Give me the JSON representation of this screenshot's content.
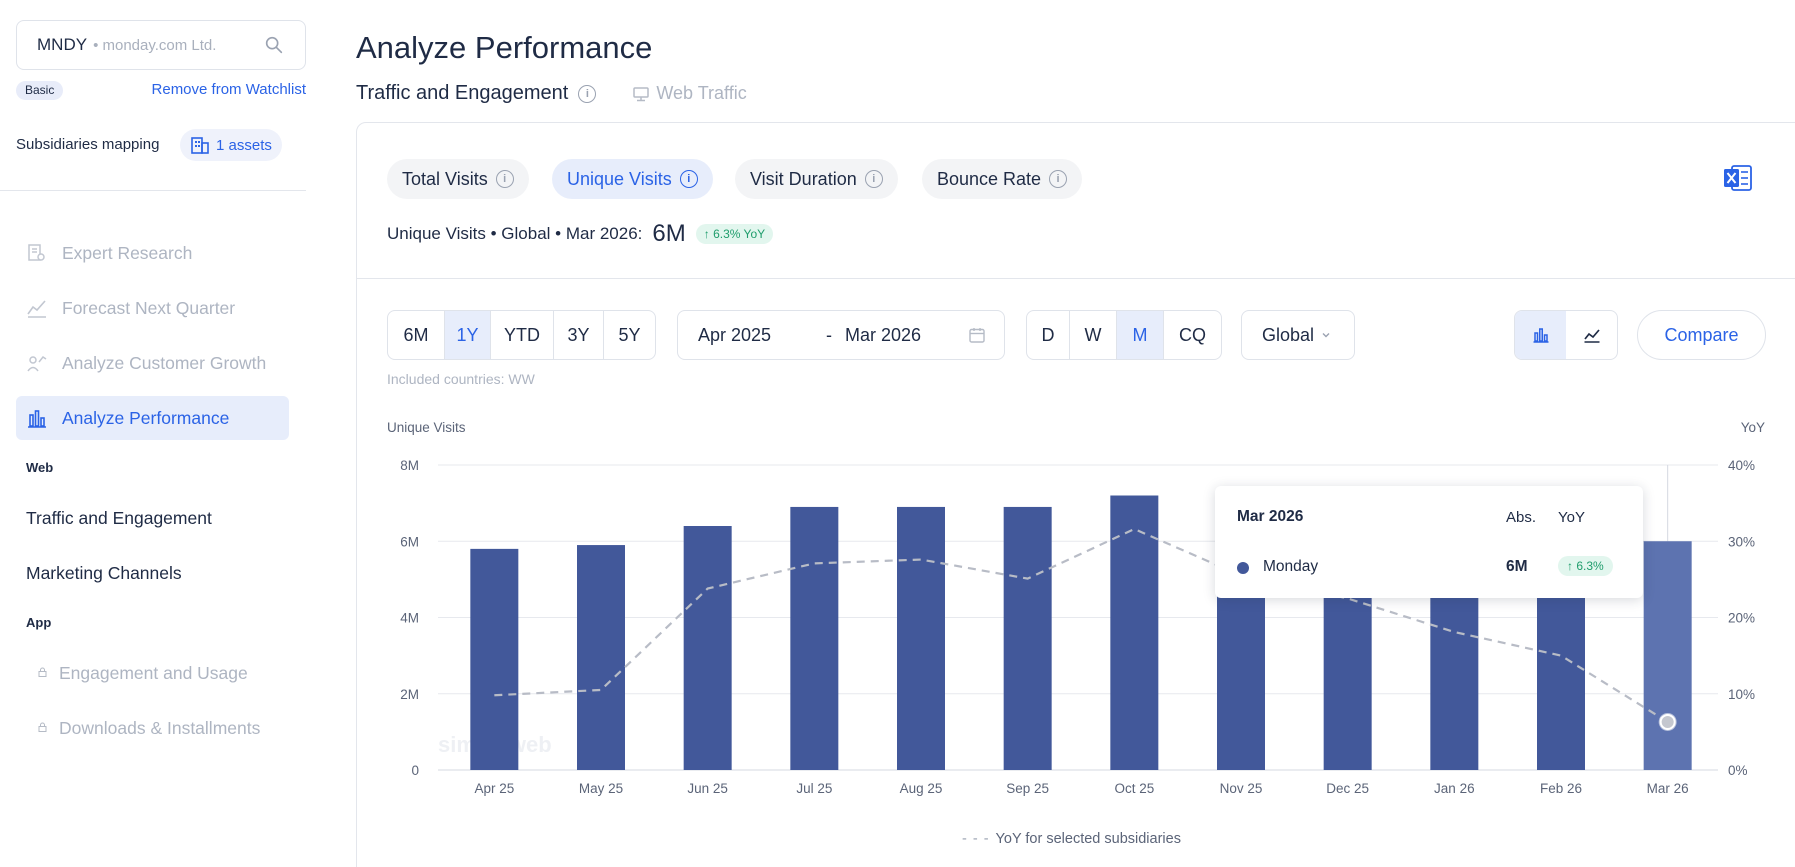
{
  "sidebar": {
    "ticker": "MNDY",
    "company": "• monday.com Ltd.",
    "plan": "Basic",
    "remove_watchlist": "Remove from Watchlist",
    "subsidiaries_label": "Subsidiaries mapping",
    "assets_label": "1 assets",
    "nav": [
      {
        "label": "Expert Research",
        "icon": "document-search-icon"
      },
      {
        "label": "Forecast Next Quarter",
        "icon": "forecast-icon"
      },
      {
        "label": "Analyze Customer Growth",
        "icon": "customer-growth-icon"
      },
      {
        "label": "Analyze Performance",
        "icon": "bar-chart-icon",
        "active": true
      }
    ],
    "web_section": "Web",
    "web_items": [
      "Traffic and Engagement",
      "Marketing Channels"
    ],
    "app_section": "App",
    "app_items": [
      "Engagement and Usage",
      "Downloads & Installments"
    ]
  },
  "main": {
    "title": "Analyze Performance",
    "subtitle": "Traffic and Engagement",
    "source": "Web Traffic",
    "metric_tabs": [
      "Total Visits",
      "Unique Visits",
      "Visit Duration",
      "Bounce Rate"
    ],
    "active_metric": "Unique Visits",
    "summary_prefix": "Unique Visits • Global • Mar 2026:",
    "summary_value": "6M",
    "summary_yoy": "6.3% YoY",
    "ranges": [
      "6M",
      "1Y",
      "YTD",
      "3Y",
      "5Y"
    ],
    "active_range": "1Y",
    "date_from": "Apr 2025",
    "date_sep": "-",
    "date_to": "Mar 2026",
    "granularity": [
      "D",
      "W",
      "M",
      "CQ"
    ],
    "active_granularity": "M",
    "region": "Global",
    "compare_label": "Compare",
    "included_countries": "Included countries: WW",
    "legend": "YoY for selected subsidiaries",
    "watermark": "similarweb"
  },
  "tooltip": {
    "date": "Mar 2026",
    "col_abs": "Abs.",
    "col_yoy": "YoY",
    "series": "Monday",
    "value": "6M",
    "yoy": "6.3%"
  },
  "colors": {
    "accent": "#2b63e6",
    "bar": "#42589a",
    "bar_highlight": "#5d73b0",
    "yoy_line": "#b8bcc6",
    "positive": "#1f9d6c"
  },
  "chart_data": {
    "type": "bar",
    "categories": [
      "Apr 25",
      "May 25",
      "Jun 25",
      "Jul 25",
      "Aug 25",
      "Sep 25",
      "Oct 25",
      "Nov 25",
      "Dec 25",
      "Jan 26",
      "Feb 26",
      "Mar 26"
    ],
    "ylabel": "Unique Visits",
    "y2label": "YoY",
    "ylim": [
      0,
      8000000
    ],
    "y2lim": [
      0,
      40
    ],
    "yticks": [
      "0",
      "2M",
      "4M",
      "6M",
      "8M"
    ],
    "y2ticks": [
      "0%",
      "10%",
      "20%",
      "30%",
      "40%"
    ],
    "series": [
      {
        "name": "Monday",
        "type": "bar",
        "values": [
          5.8,
          5.9,
          6.4,
          6.9,
          6.9,
          6.9,
          7.2,
          6.6,
          6.4,
          6.4,
          6.4,
          6.0
        ],
        "unit": "M"
      },
      {
        "name": "YoY for selected subsidiaries",
        "type": "line",
        "values": [
          9.8,
          10.5,
          23.8,
          27.1,
          27.6,
          25.1,
          31.6,
          25.5,
          22.5,
          18.1,
          15.0,
          6.3
        ],
        "unit": "%"
      }
    ],
    "grid": true,
    "legend": "bottom-center"
  }
}
